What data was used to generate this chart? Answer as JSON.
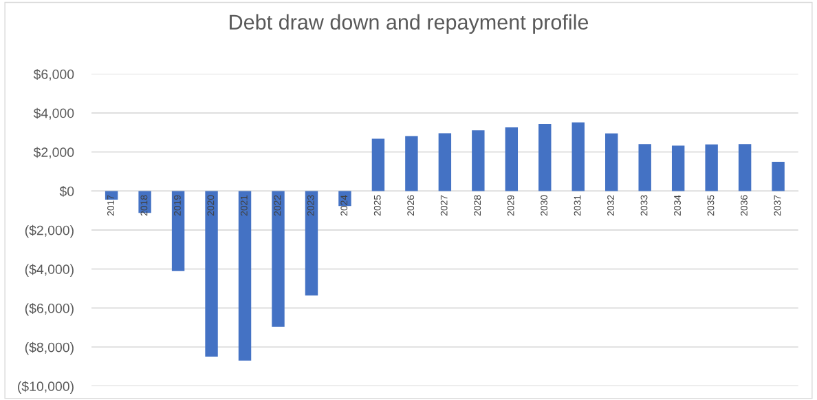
{
  "chart_data": {
    "type": "bar",
    "title": "Debt draw down and repayment profile",
    "categories": [
      "2017",
      "2018",
      "2019",
      "2020",
      "2021",
      "2022",
      "2023",
      "2024",
      "2025",
      "2026",
      "2027",
      "2028",
      "2029",
      "2030",
      "2031",
      "2032",
      "2033",
      "2034",
      "2035",
      "2036",
      "2037"
    ],
    "values": [
      -440,
      -1120,
      -4110,
      -8490,
      -8700,
      -6970,
      -5360,
      -770,
      2680,
      2810,
      2960,
      3110,
      3260,
      3440,
      3520,
      2950,
      2410,
      2330,
      2390,
      2410,
      1500
    ],
    "color": "#4472c4",
    "ylim": [
      -10000,
      6000
    ],
    "yticks": [
      {
        "value": -10000,
        "label": "($10,000)"
      },
      {
        "value": -8000,
        "label": "($8,000)"
      },
      {
        "value": -6000,
        "label": "($6,000)"
      },
      {
        "value": -4000,
        "label": "($4,000)"
      },
      {
        "value": -2000,
        "label": "($2,000)"
      },
      {
        "value": 0,
        "label": "$0"
      },
      {
        "value": 2000,
        "label": "$2,000"
      },
      {
        "value": 4000,
        "label": "$4,000"
      },
      {
        "value": 6000,
        "label": "$6,000"
      }
    ],
    "grid": "y"
  }
}
